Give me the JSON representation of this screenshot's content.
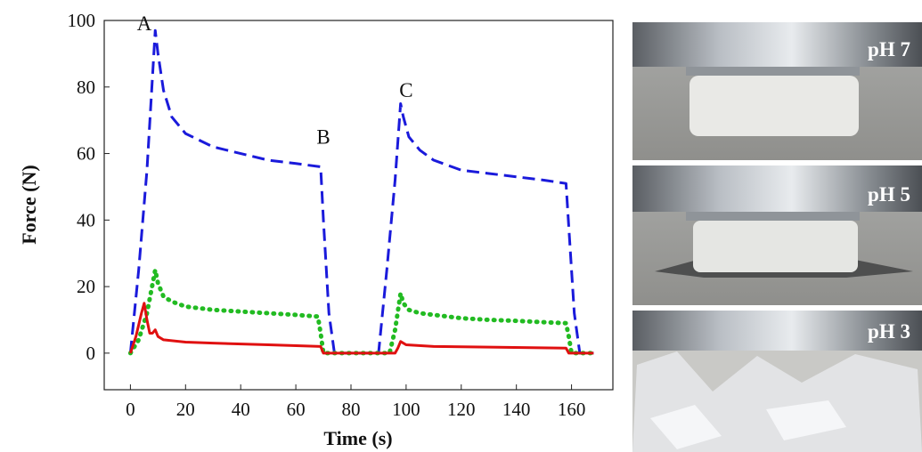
{
  "chart_data": {
    "type": "line",
    "x_label": "Time (s)",
    "y_label": "Force (N)",
    "xlim": [
      -9.5,
      175
    ],
    "ylim": [
      -11,
      100
    ],
    "xticks": [
      0,
      20,
      40,
      60,
      80,
      100,
      120,
      140,
      160
    ],
    "yticks": [
      0,
      20,
      40,
      60,
      80,
      100
    ],
    "series": [
      {
        "color": "#1a1adb",
        "dash": "dashed",
        "x": [
          0,
          3,
          6,
          9,
          10,
          12,
          15,
          20,
          30,
          40,
          50,
          60,
          69,
          70,
          72,
          74,
          90,
          93,
          96,
          98,
          99,
          101,
          105,
          110,
          120,
          130,
          140,
          150,
          158,
          159,
          161,
          163,
          168
        ],
        "values": [
          0,
          25,
          55,
          97,
          90,
          79,
          71,
          66,
          62,
          60,
          58,
          57,
          56,
          40,
          12,
          0,
          0,
          25,
          52,
          75,
          71,
          65,
          61,
          58,
          55,
          54,
          53,
          52,
          51,
          38,
          12,
          0,
          0
        ]
      },
      {
        "color": "#22bb22",
        "dash": "dotted",
        "x": [
          0,
          3,
          6,
          9,
          10,
          12,
          15,
          20,
          30,
          40,
          50,
          60,
          68,
          69,
          70,
          94,
          96,
          98,
          99,
          101,
          105,
          110,
          120,
          130,
          140,
          150,
          158,
          159,
          160,
          167
        ],
        "values": [
          0,
          4,
          12,
          25,
          21,
          17,
          15.5,
          14,
          13,
          12.5,
          12,
          11.5,
          11,
          6,
          0,
          0,
          7,
          18,
          15,
          13,
          12,
          11.5,
          10.5,
          10,
          9.7,
          9.3,
          9,
          5,
          0,
          0
        ],
        "line_width": 5
      },
      {
        "color": "#e01010",
        "dash": "solid",
        "x": [
          0,
          2,
          4,
          5,
          6,
          7,
          8,
          9,
          10,
          12,
          20,
          30,
          50,
          69,
          70,
          96,
          97,
          98,
          100,
          110,
          130,
          158,
          159,
          168
        ],
        "values": [
          0,
          5,
          12,
          15,
          10,
          6,
          6,
          7,
          5,
          4,
          3.3,
          3,
          2.5,
          2,
          0,
          0,
          1.5,
          3.5,
          2.5,
          2,
          1.8,
          1.5,
          0,
          0
        ]
      }
    ],
    "annotations": [
      {
        "text": "A",
        "x": 5,
        "y": 97
      },
      {
        "text": "B",
        "x": 70,
        "y": 63
      },
      {
        "text": "C",
        "x": 100,
        "y": 77
      }
    ]
  },
  "photos": [
    {
      "label": "pH 7"
    },
    {
      "label": "pH 5"
    },
    {
      "label": "pH 3"
    }
  ]
}
